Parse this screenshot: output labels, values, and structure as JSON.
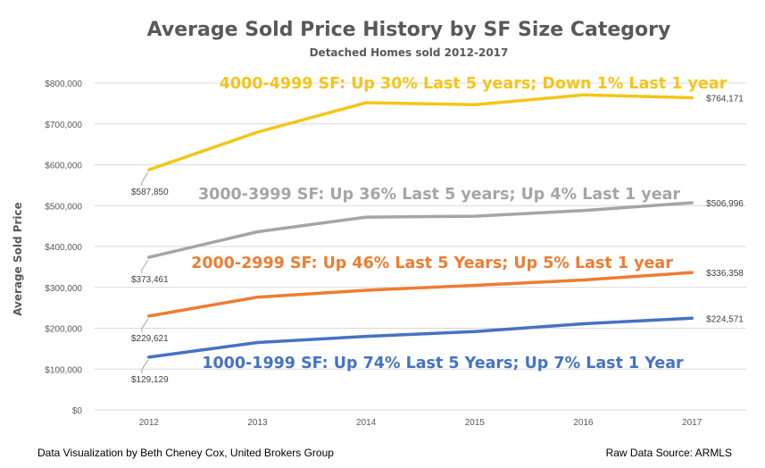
{
  "chart_data": {
    "type": "line",
    "title": "Average Sold Price History by SF Size Category",
    "subtitle": "Detached Homes sold 2012-2017",
    "xlabel": "",
    "ylabel": "Average Sold Price",
    "categories": [
      "2012",
      "2013",
      "2014",
      "2015",
      "2016",
      "2017"
    ],
    "ylim": [
      0,
      800000
    ],
    "yticks": [
      0,
      100000,
      200000,
      300000,
      400000,
      500000,
      600000,
      700000,
      800000
    ],
    "ytick_labels": [
      "$0",
      "$100,000",
      "$200,000",
      "$300,000",
      "$400,000",
      "$500,000",
      "$600,000",
      "$700,000",
      "$800,000"
    ],
    "grid": true,
    "series": [
      {
        "key": "sf4000",
        "name": "4000-4999 SF",
        "color": "#f5c518",
        "values": [
          587850,
          680000,
          752000,
          747000,
          771000,
          764171
        ],
        "annotation": "4000-4999 SF:  Up 30%  Last 5 years; Down 1% Last 1 year",
        "start_label": "$587,850",
        "end_label": "$764,171"
      },
      {
        "key": "sf3000",
        "name": "3000-3999 SF",
        "color": "#a5a5a5",
        "values": [
          373461,
          436000,
          472000,
          474000,
          488000,
          506996
        ],
        "annotation": "3000-3999 SF:  Up 36% Last 5 years; Up 4% Last 1 year",
        "start_label": "$373,461",
        "end_label": "$506,996"
      },
      {
        "key": "sf2000",
        "name": "2000-2999 SF",
        "color": "#ed7d31",
        "values": [
          229621,
          276000,
          293000,
          305000,
          318000,
          336358
        ],
        "annotation": "2000-2999 SF:  Up 46% Last 5 Years; Up 5% Last 1 year",
        "start_label": "$229,621",
        "end_label": "$336,358"
      },
      {
        "key": "sf1000",
        "name": "1000-1999 SF",
        "color": "#4472c4",
        "values": [
          129129,
          165000,
          180000,
          192000,
          211000,
          224571
        ],
        "annotation": "1000-1999 SF:  Up 74%  Last 5 Years; Up 7% Last 1 Year",
        "start_label": "$129,129",
        "end_label": "$224,571"
      }
    ]
  },
  "footer": {
    "left": "Data Visualization by Beth Cheney Cox, United Brokers Group",
    "right": "Raw Data Source:  ARMLS"
  }
}
